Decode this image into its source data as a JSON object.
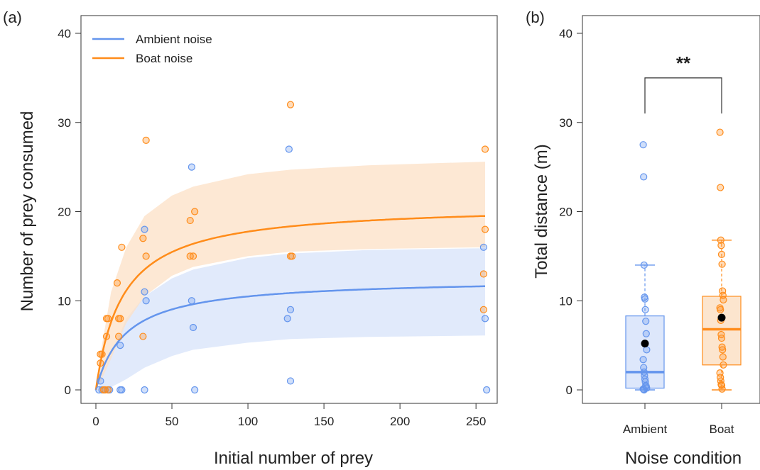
{
  "colors": {
    "ambient": "#6495ED",
    "boat": "#FF8C1A",
    "ambient_fill": "#D7E3FA",
    "boat_fill": "#FCE0C6"
  },
  "chart_data": [
    {
      "type": "scatter",
      "panel_label": "(a)",
      "xlabel": "Initial number of prey",
      "ylabel": "Number of prey consumed",
      "xlim": [
        0,
        260
      ],
      "ylim": [
        0,
        40
      ],
      "xticks": [
        "0",
        "50",
        "100",
        "150",
        "200",
        "250"
      ],
      "yticks": [
        "0",
        "10",
        "20",
        "30",
        "40"
      ],
      "legend_position": "top-left",
      "grid": false,
      "series": [
        {
          "name": "Ambient noise",
          "key": "ambient",
          "fit": {
            "a": 0.65,
            "h": 0.08
          },
          "band": [
            {
              "x": 2,
              "lo": 0,
              "hi": 1
            },
            {
              "x": 10,
              "lo": 0.3,
              "hi": 4
            },
            {
              "x": 20,
              "lo": 1.2,
              "hi": 8
            },
            {
              "x": 32,
              "lo": 2.5,
              "hi": 10.5
            },
            {
              "x": 50,
              "lo": 3.8,
              "hi": 12.5
            },
            {
              "x": 64,
              "lo": 4.5,
              "hi": 13.5
            },
            {
              "x": 100,
              "lo": 5.3,
              "hi": 14.8
            },
            {
              "x": 128,
              "lo": 5.7,
              "hi": 15.3
            },
            {
              "x": 180,
              "lo": 5.95,
              "hi": 15.7
            },
            {
              "x": 256,
              "lo": 6.1,
              "hi": 15.9
            }
          ],
          "points": [
            {
              "x": 2,
              "y": 0
            },
            {
              "x": 3,
              "y": 1
            },
            {
              "x": 4,
              "y": 0
            },
            {
              "x": 6,
              "y": 0
            },
            {
              "x": 8,
              "y": 0
            },
            {
              "x": 9,
              "y": 0
            },
            {
              "x": 16,
              "y": 5
            },
            {
              "x": 16,
              "y": 0
            },
            {
              "x": 17,
              "y": 0
            },
            {
              "x": 32,
              "y": 0
            },
            {
              "x": 32,
              "y": 18
            },
            {
              "x": 32,
              "y": 11
            },
            {
              "x": 33,
              "y": 10
            },
            {
              "x": 63,
              "y": 25
            },
            {
              "x": 63,
              "y": 10
            },
            {
              "x": 64,
              "y": 7
            },
            {
              "x": 65,
              "y": 0
            },
            {
              "x": 127,
              "y": 27
            },
            {
              "x": 126,
              "y": 8
            },
            {
              "x": 128,
              "y": 9
            },
            {
              "x": 128,
              "y": 1
            },
            {
              "x": 255,
              "y": 16
            },
            {
              "x": 256,
              "y": 8
            },
            {
              "x": 257,
              "y": 0
            }
          ]
        },
        {
          "name": "Boat noise",
          "key": "boat",
          "fit": {
            "a": 1.2,
            "h": 0.048
          },
          "band": [
            {
              "x": 2,
              "lo": 0.5,
              "hi": 3
            },
            {
              "x": 10,
              "lo": 3.5,
              "hi": 11
            },
            {
              "x": 20,
              "lo": 7.5,
              "hi": 16
            },
            {
              "x": 32,
              "lo": 10.5,
              "hi": 19.5
            },
            {
              "x": 50,
              "lo": 12.8,
              "hi": 21.8
            },
            {
              "x": 64,
              "lo": 13.8,
              "hi": 22.8
            },
            {
              "x": 100,
              "lo": 15,
              "hi": 24.2
            },
            {
              "x": 128,
              "lo": 15.5,
              "hi": 24.7
            },
            {
              "x": 180,
              "lo": 15.8,
              "hi": 25.2
            },
            {
              "x": 256,
              "lo": 16,
              "hi": 25.6
            }
          ],
          "points": [
            {
              "x": 3,
              "y": 4
            },
            {
              "x": 3,
              "y": 3
            },
            {
              "x": 4,
              "y": 4
            },
            {
              "x": 5,
              "y": 0
            },
            {
              "x": 6,
              "y": 0
            },
            {
              "x": 7,
              "y": 8
            },
            {
              "x": 8,
              "y": 8
            },
            {
              "x": 7,
              "y": 6
            },
            {
              "x": 8,
              "y": 0
            },
            {
              "x": 14,
              "y": 12
            },
            {
              "x": 15,
              "y": 8
            },
            {
              "x": 16,
              "y": 8
            },
            {
              "x": 15,
              "y": 6
            },
            {
              "x": 17,
              "y": 16
            },
            {
              "x": 31,
              "y": 17
            },
            {
              "x": 33,
              "y": 28
            },
            {
              "x": 33,
              "y": 15
            },
            {
              "x": 31,
              "y": 6
            },
            {
              "x": 62,
              "y": 19
            },
            {
              "x": 65,
              "y": 20
            },
            {
              "x": 62,
              "y": 15
            },
            {
              "x": 64,
              "y": 15
            },
            {
              "x": 128,
              "y": 32
            },
            {
              "x": 128,
              "y": 15
            },
            {
              "x": 129,
              "y": 15
            },
            {
              "x": 256,
              "y": 27
            },
            {
              "x": 256,
              "y": 18
            },
            {
              "x": 255,
              "y": 13
            },
            {
              "x": 255,
              "y": 9
            }
          ]
        }
      ]
    },
    {
      "type": "box",
      "panel_label": "(b)",
      "xlabel": "Noise condition",
      "ylabel": "Total distance (m)",
      "ylim": [
        0,
        40
      ],
      "yticks": [
        "0",
        "10",
        "20",
        "30",
        "40"
      ],
      "categories": [
        "Ambient",
        "Boat"
      ],
      "significance": {
        "label": "**",
        "y_bracket": 35,
        "y_drop": 31
      },
      "groups": [
        {
          "name": "Ambient",
          "key": "ambient",
          "q1": 0.2,
          "median": 2.0,
          "q3": 8.3,
          "whisker_low": 0,
          "whisker_high": 14,
          "mean": 5.2,
          "points": [
            27.5,
            23.9,
            14,
            10.4,
            10.2,
            9,
            7.7,
            6.3,
            4.5,
            3.4,
            2.5,
            2.0,
            1.6,
            1.2,
            0.9,
            0.5,
            0.4,
            0.2,
            0.1,
            0.05,
            0
          ]
        },
        {
          "name": "Boat",
          "key": "boat",
          "q1": 2.8,
          "median": 6.8,
          "q3": 10.5,
          "whisker_low": 0,
          "whisker_high": 16.8,
          "mean": 8.1,
          "points": [
            28.9,
            22.7,
            16.8,
            16.2,
            15.2,
            14.1,
            11.1,
            10.6,
            10.1,
            9.2,
            9.0,
            7.8,
            6.2,
            5.8,
            4.8,
            4.5,
            3.7,
            2.8,
            1.9,
            1.4,
            1.0,
            0.6,
            0.5,
            0.1
          ]
        }
      ]
    }
  ]
}
